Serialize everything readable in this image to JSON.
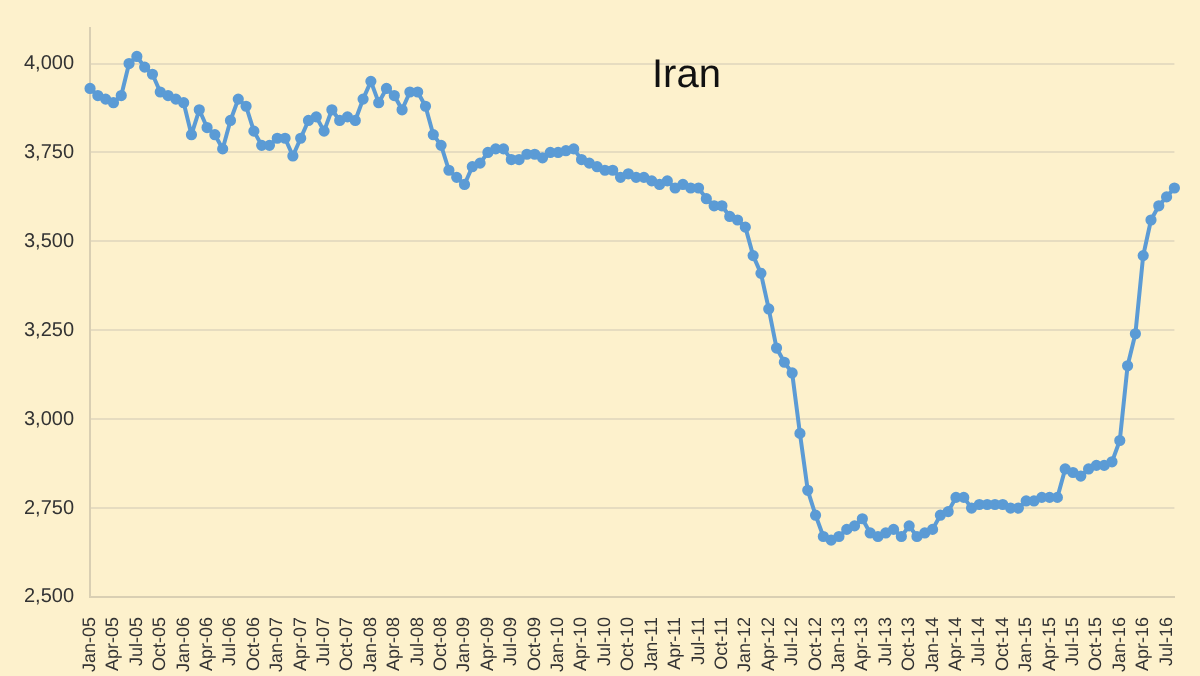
{
  "chart_data": {
    "type": "line",
    "title": "Iran",
    "categories": [
      "Jan-05",
      null,
      null,
      "Apr-05",
      null,
      null,
      "Jul-05",
      null,
      null,
      "Oct-05",
      null,
      null,
      "Jan-06",
      null,
      null,
      "Apr-06",
      null,
      null,
      "Jul-06",
      null,
      null,
      "Oct-06",
      null,
      null,
      "Jan-07",
      null,
      null,
      "Apr-07",
      null,
      null,
      "Jul-07",
      null,
      null,
      "Oct-07",
      null,
      null,
      "Jan-08",
      null,
      null,
      "Apr-08",
      null,
      null,
      "Jul-08",
      null,
      null,
      "Oct-08",
      null,
      null,
      "Jan-09",
      null,
      null,
      "Apr-09",
      null,
      null,
      "Jul-09",
      null,
      null,
      "Oct-09",
      null,
      null,
      "Jan-10",
      null,
      null,
      "Apr-10",
      null,
      null,
      "Jul-10",
      null,
      null,
      "Oct-10",
      null,
      null,
      "Jan-11",
      null,
      null,
      "Apr-11",
      null,
      null,
      "Jul-11",
      null,
      null,
      "Oct-11",
      null,
      null,
      "Jan-12",
      null,
      null,
      "Apr-12",
      null,
      null,
      "Jul-12",
      null,
      null,
      "Oct-12",
      null,
      null,
      "Jan-13",
      null,
      null,
      "Apr-13",
      null,
      null,
      "Jul-13",
      null,
      null,
      "Oct-13",
      null,
      null,
      "Jan-14",
      null,
      null,
      "Apr-14",
      null,
      null,
      "Jul-14",
      null,
      null,
      "Oct-14",
      null,
      null,
      "Jan-15",
      null,
      null,
      "Apr-15",
      null,
      null,
      "Jul-15",
      null,
      null,
      "Oct-15",
      null,
      null,
      "Jan-16",
      null,
      null,
      "Apr-16",
      null,
      null,
      "Jul-16",
      null
    ],
    "series": [
      {
        "color": "#5b9bd5",
        "values": [
          3930,
          3910,
          3900,
          3890,
          3910,
          4000,
          4020,
          3990,
          3970,
          3920,
          3910,
          3900,
          3890,
          3800,
          3870,
          3820,
          3800,
          3760,
          3840,
          3900,
          3880,
          3810,
          3770,
          3770,
          3790,
          3790,
          3740,
          3790,
          3840,
          3850,
          3810,
          3870,
          3840,
          3850,
          3840,
          3900,
          3950,
          3890,
          3930,
          3910,
          3870,
          3920,
          3920,
          3880,
          3800,
          3770,
          3700,
          3680,
          3660,
          3710,
          3720,
          3750,
          3760,
          3760,
          3730,
          3730,
          3745,
          3745,
          3735,
          3750,
          3750,
          3755,
          3760,
          3730,
          3720,
          3710,
          3700,
          3700,
          3680,
          3690,
          3680,
          3680,
          3670,
          3660,
          3670,
          3650,
          3660,
          3650,
          3650,
          3620,
          3600,
          3600,
          3570,
          3560,
          3540,
          3460,
          3410,
          3310,
          3200,
          3160,
          3130,
          2960,
          2800,
          2730,
          2670,
          2660,
          2670,
          2690,
          2700,
          2720,
          2680,
          2670,
          2680,
          2690,
          2670,
          2700,
          2670,
          2680,
          2690,
          2730,
          2740,
          2780,
          2780,
          2750,
          2760,
          2760,
          2760,
          2760,
          2750,
          2750,
          2770,
          2770,
          2780,
          2780,
          2780,
          2860,
          2850,
          2840,
          2860,
          2870,
          2870,
          2880,
          2940,
          3150,
          3240,
          3460,
          3560,
          3600,
          3625,
          3650
        ]
      }
    ],
    "ylim": [
      2500,
      4100
    ],
    "yticks": [
      {
        "value": 2500,
        "label": "2,500"
      },
      {
        "value": 2750,
        "label": "2,750"
      },
      {
        "value": 3000,
        "label": "3,000"
      },
      {
        "value": 3250,
        "label": "3,250"
      },
      {
        "value": 3500,
        "label": "3,500"
      },
      {
        "value": 3750,
        "label": "3,750"
      },
      {
        "value": 4000,
        "label": "4,000"
      }
    ],
    "grid": "y",
    "marker": "circle",
    "line_style": "solid",
    "legend": false
  }
}
